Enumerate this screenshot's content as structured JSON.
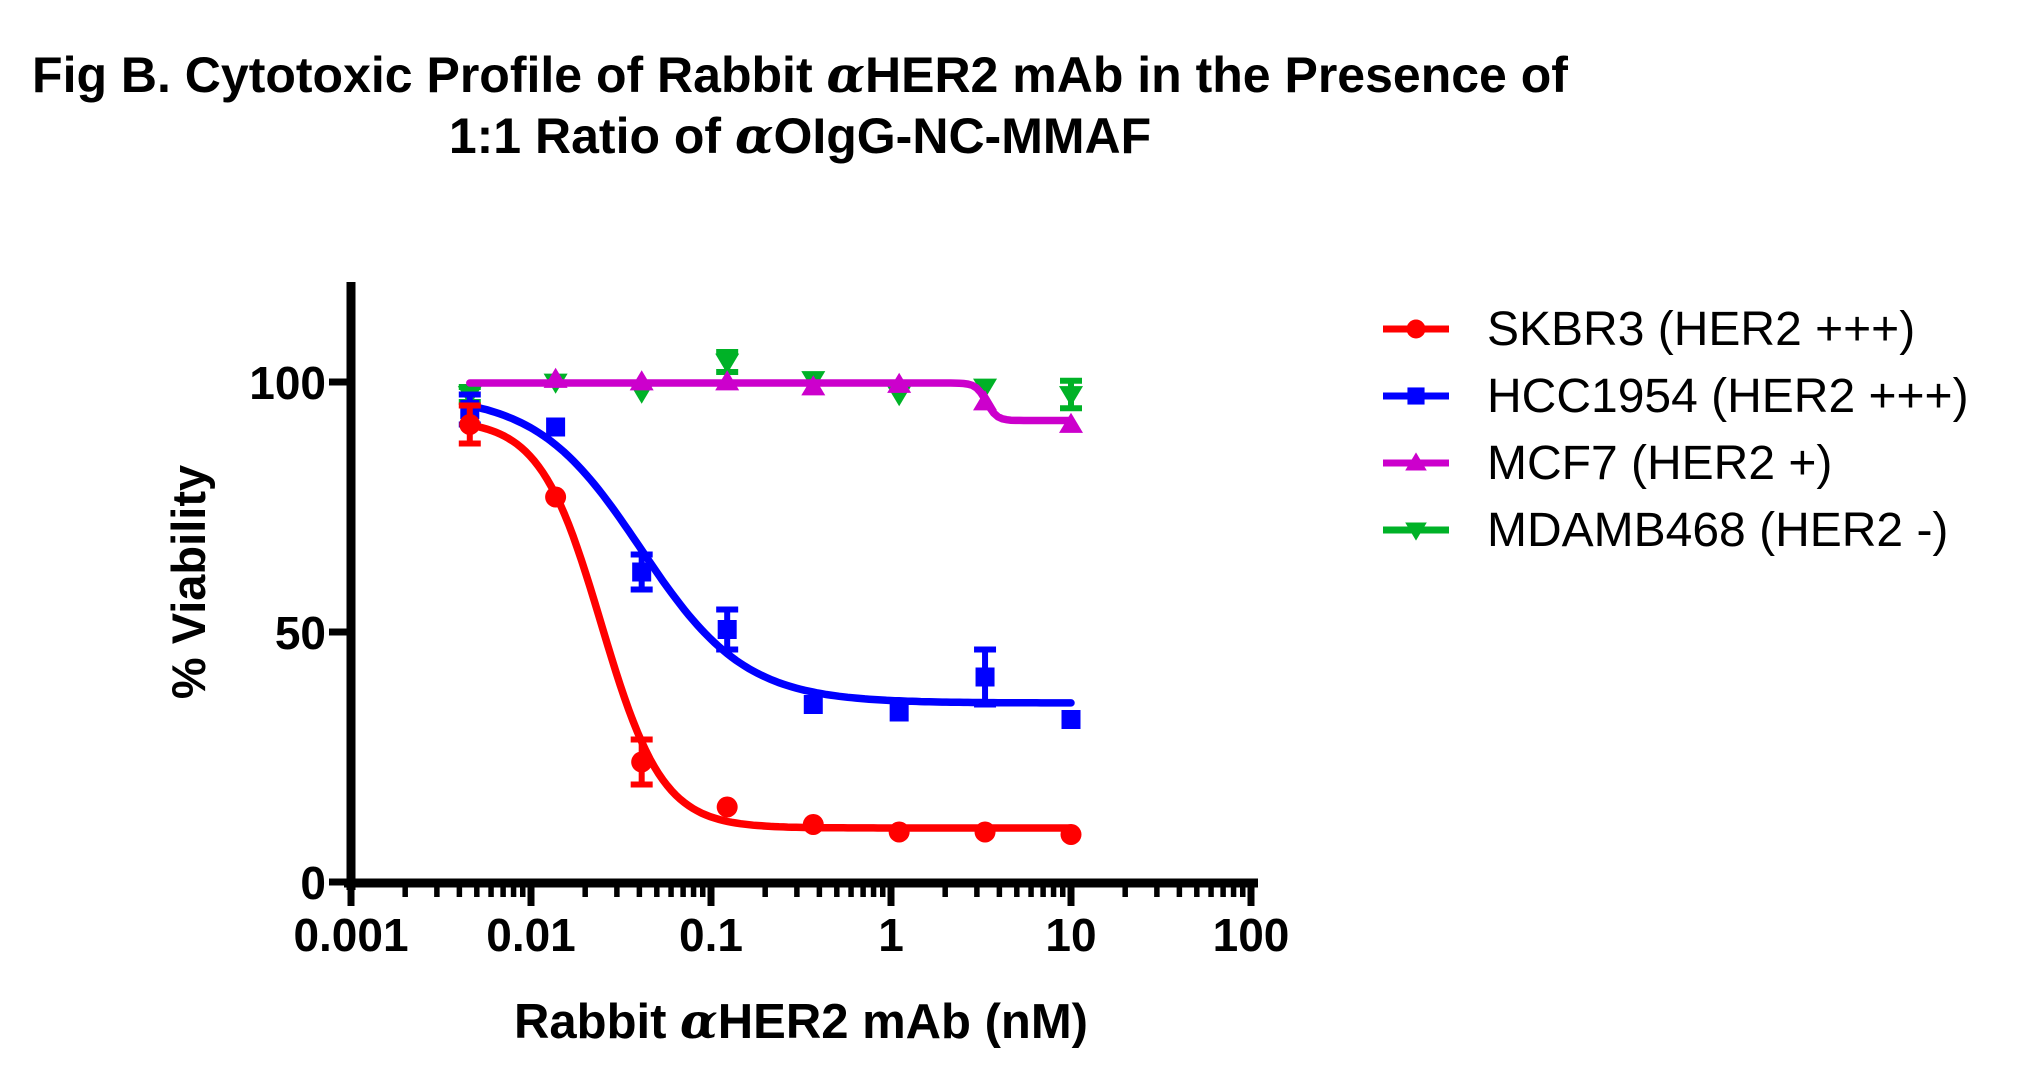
{
  "chart_data": {
    "type": "line",
    "title_line1": "Fig B. Cytotoxic Profile of Rabbit αHER2 mAb in the Presence of",
    "title_line2": "1:1 Ratio of αOIgG-NC-MMAF",
    "xlabel": "Rabbit αHER2 mAb (nM)",
    "ylabel": "% Viability",
    "x_scale": "log",
    "xlim": [
      0.001,
      100
    ],
    "ylim": [
      0,
      120
    ],
    "x_major_ticks": [
      0.001,
      0.01,
      0.1,
      1,
      10,
      100
    ],
    "x_tick_labels": [
      "0.001",
      "0.01",
      "0.1",
      "1",
      "10",
      "100"
    ],
    "x_minor_ticks_per_decade": [
      2,
      3,
      4,
      5,
      6,
      7,
      8,
      9
    ],
    "y_ticks": [
      0,
      50,
      100
    ],
    "y_tick_labels": [
      "0",
      "50",
      "100"
    ],
    "grid": false,
    "legend_position": "right",
    "x_nM": [
      0.00457,
      0.0137,
      0.0412,
      0.123,
      0.37,
      1.11,
      3.33,
      10
    ],
    "series": [
      {
        "name": "SKBR3 (HER2 +++)",
        "color": "#FF0000",
        "marker": "circle",
        "values": [
          91.5,
          77,
          24,
          15,
          11.5,
          10,
          10,
          9.5
        ],
        "errors": [
          3.8,
          0,
          4.5,
          0,
          0,
          0,
          0,
          0
        ],
        "fit": {
          "top": 92.5,
          "bottom": 10.8,
          "logIC50": -1.61,
          "hill": 2.55
        }
      },
      {
        "name": "HCC1954 (HER2 +++)",
        "color": "#0000FF",
        "marker": "square",
        "values": [
          94.5,
          91,
          62,
          50.5,
          35.5,
          34,
          41,
          32.5
        ],
        "errors": [
          3,
          0,
          3.5,
          4,
          0,
          0,
          5.5,
          0
        ],
        "fit": {
          "top": 97.5,
          "bottom": 35.8,
          "logIC50": -1.39,
          "hill": 1.5
        }
      },
      {
        "name": "MCF7 (HER2 +)",
        "color": "#CC00CC",
        "marker": "triangle-up",
        "values": [
          null,
          100.5,
          100,
          100,
          99,
          99.5,
          96,
          91.5
        ],
        "errors": [
          0,
          0,
          0,
          0,
          0,
          0,
          0,
          0
        ],
        "fit": {
          "top": 99.8,
          "bottom": 92.3,
          "logIC50": 0.53,
          "hill": 15
        }
      },
      {
        "name": "MDAMB468 (HER2 -)",
        "color": "#00B227",
        "marker": "triangle-down",
        "values": [
          97.5,
          100,
          98,
          104,
          100.5,
          97.5,
          99,
          97.5
        ],
        "errors": [
          1.5,
          0,
          0,
          2,
          0,
          0,
          0,
          2.75
        ],
        "fit": null
      }
    ]
  }
}
